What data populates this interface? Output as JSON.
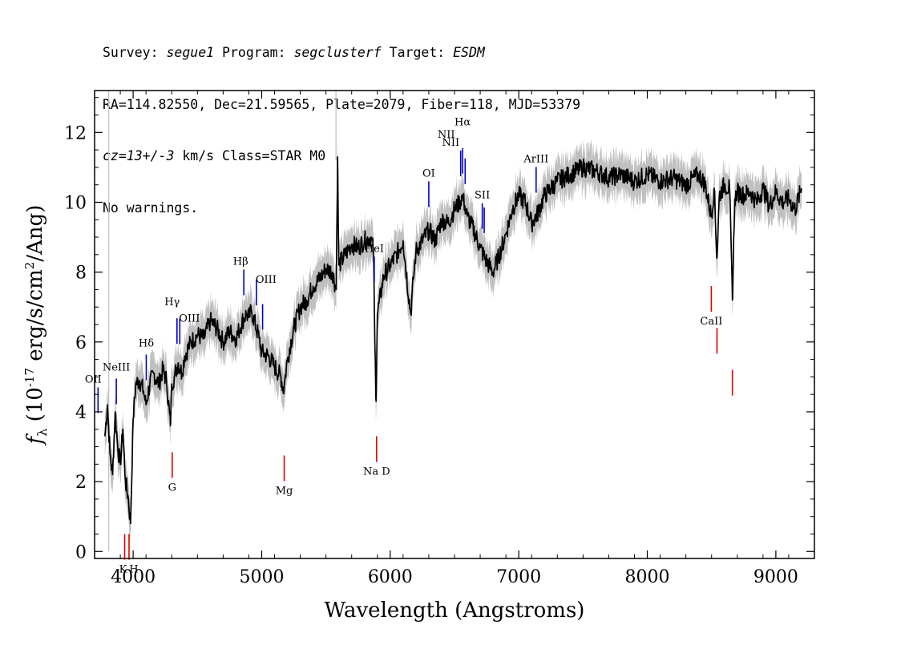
{
  "header": {
    "line1": {
      "survey_label": "Survey: ",
      "survey": "segue1",
      "program_label": " Program: ",
      "program": "segclusterf",
      "target_label": " Target: ",
      "target": "ESDM"
    },
    "line2": "RA=114.82550, Dec=21.59565, Plate=2079, Fiber=118, MJD=53379",
    "line3": {
      "cz": "cz=13+/-3",
      "rest": " km/s Class=STAR M0"
    },
    "line4": "No warnings."
  },
  "colors": {
    "spectrum": "#000000",
    "error_band": "#c0c0c0",
    "emission": "#0000cc",
    "absorption": "#e00000"
  },
  "chart_data": {
    "type": "line",
    "xlabel": "Wavelength (Angstroms)",
    "ylabel": "f_λ (10^-17 erg/s/cm^2/Ang)",
    "xlim": [
      3700,
      9300
    ],
    "ylim": [
      -0.2,
      13.2
    ],
    "x_ticks": [
      "4000",
      "5000",
      "6000",
      "7000",
      "8000",
      "9000"
    ],
    "y_ticks": [
      "0",
      "2",
      "4",
      "6",
      "8",
      "10",
      "12"
    ],
    "series": [
      {
        "x": [
          3780,
          3800,
          3820,
          3840,
          3860,
          3880,
          3900,
          3920,
          3940,
          3960,
          3980,
          4000,
          4020,
          4050,
          4080,
          4100,
          4130,
          4160,
          4200,
          4230,
          4260,
          4290,
          4300,
          4320,
          4350,
          4380,
          4400,
          4450,
          4500,
          4550,
          4600,
          4650,
          4700,
          4750,
          4800,
          4850,
          4880,
          4900,
          4920,
          4950,
          4980,
          5000,
          5050,
          5100,
          5150,
          5170,
          5180,
          5200,
          5250,
          5300,
          5350,
          5400,
          5450,
          5500,
          5550,
          5580,
          5590,
          5600,
          5650,
          5700,
          5750,
          5800,
          5850,
          5870,
          5880,
          5890,
          5900,
          5950,
          6000,
          6050,
          6100,
          6150,
          6160,
          6180,
          6200,
          6250,
          6300,
          6350,
          6400,
          6450,
          6500,
          6540,
          6560,
          6580,
          6600,
          6650,
          6700,
          6750,
          6800,
          6850,
          6900,
          6950,
          7000,
          7050,
          7100,
          7150,
          7200,
          7250,
          7300,
          7400,
          7500,
          7600,
          7700,
          7800,
          7900,
          8000,
          8100,
          8200,
          8300,
          8400,
          8450,
          8498,
          8520,
          8542,
          8560,
          8600,
          8640,
          8662,
          8680,
          8700,
          8750,
          8800,
          8850,
          8900,
          8950,
          9000,
          9050,
          9100,
          9150,
          9200
        ],
        "y": [
          3.3,
          4.2,
          2.8,
          2.2,
          4.0,
          3.0,
          2.5,
          3.5,
          2.0,
          1.6,
          0.8,
          3.8,
          4.8,
          4.9,
          4.6,
          4.2,
          4.8,
          5.1,
          4.8,
          5.2,
          4.9,
          3.6,
          4.8,
          5.0,
          5.4,
          5.1,
          5.6,
          6.0,
          6.2,
          6.1,
          6.6,
          6.4,
          6.0,
          6.3,
          6.1,
          6.6,
          6.8,
          6.7,
          6.9,
          6.5,
          6.1,
          5.7,
          5.6,
          5.3,
          5.0,
          4.6,
          4.9,
          5.5,
          6.4,
          7.0,
          7.2,
          7.6,
          7.8,
          8.1,
          8.0,
          7.5,
          11.3,
          8.2,
          8.5,
          8.8,
          8.7,
          8.9,
          9.0,
          8.6,
          6.0,
          4.3,
          6.8,
          7.9,
          8.2,
          8.5,
          8.9,
          7.1,
          6.8,
          7.8,
          8.6,
          8.9,
          9.2,
          8.9,
          9.5,
          9.4,
          9.8,
          10.0,
          10.2,
          9.9,
          9.6,
          9.2,
          8.7,
          8.3,
          8.0,
          8.5,
          9.1,
          9.8,
          10.2,
          10.0,
          9.4,
          9.7,
          10.2,
          10.4,
          10.6,
          10.8,
          11.0,
          10.9,
          10.7,
          10.8,
          10.6,
          10.8,
          10.6,
          10.7,
          10.5,
          10.8,
          10.5,
          9.6,
          10.4,
          8.4,
          10.2,
          10.5,
          10.4,
          7.2,
          10.1,
          10.3,
          10.2,
          10.3,
          10.0,
          10.4,
          9.9,
          10.3,
          10.0,
          10.1,
          9.8,
          10.4
        ]
      }
    ],
    "emission_lines": [
      {
        "label": "OII",
        "x": 3727
      },
      {
        "label": "NeIII",
        "x": 3869
      },
      {
        "label": "Hδ",
        "x": 4102
      },
      {
        "label": "Hγ",
        "x": 4341
      },
      {
        "label": "OIII",
        "x": 4363
      },
      {
        "label": "Hβ",
        "x": 4861
      },
      {
        "label": "OIII",
        "x": 4959
      },
      {
        "label": "",
        "x": 5007
      },
      {
        "label": "HeI",
        "x": 5876
      },
      {
        "label": "OI",
        "x": 6300
      },
      {
        "label": "NII",
        "x": 6548
      },
      {
        "label": "Hα",
        "x": 6563
      },
      {
        "label": "NII",
        "x": 6583
      },
      {
        "label": "SII",
        "x": 6716
      },
      {
        "label": "",
        "x": 6731
      },
      {
        "label": "ArIII",
        "x": 7135
      }
    ],
    "absorption_lines": [
      {
        "label": "K",
        "x": 3934
      },
      {
        "label": "H",
        "x": 3968
      },
      {
        "label": "G",
        "x": 4304
      },
      {
        "label": "Mg",
        "x": 5175
      },
      {
        "label": "Na D",
        "x": 5894
      },
      {
        "label": "CaII",
        "x": 8498
      },
      {
        "label": "",
        "x": 8542
      },
      {
        "label": "",
        "x": 8662
      }
    ]
  }
}
